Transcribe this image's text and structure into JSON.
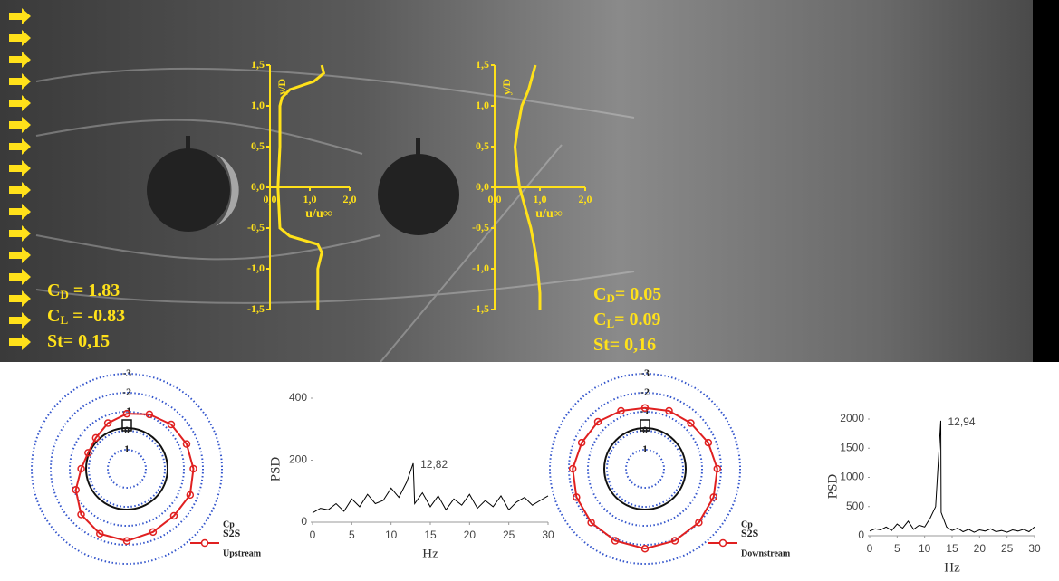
{
  "chart_data": [
    {
      "type": "line",
      "orientation": "vertical",
      "color": "#ffe11a",
      "xlabel": "u/u∞",
      "ylabel": "y/D",
      "y": [
        1.5,
        1.4,
        1.3,
        1.2,
        1.1,
        1.0,
        0.5,
        0.0,
        -0.5,
        -0.6,
        -0.7,
        -0.8,
        -1.0,
        -1.5
      ],
      "values": [
        1.3,
        1.35,
        1.1,
        0.5,
        0.3,
        0.25,
        0.25,
        0.2,
        0.25,
        0.5,
        1.2,
        1.3,
        1.2,
        1.2
      ],
      "xlim": [
        0,
        2
      ],
      "xticks": [
        {
          "value": 0,
          "label": "0,0"
        },
        {
          "value": 1,
          "label": "1,0"
        },
        {
          "value": 2,
          "label": "2,0"
        }
      ],
      "ylim": [
        -1.5,
        1.5
      ],
      "yticks": [
        {
          "value": -1.5,
          "label": "-1,5"
        },
        {
          "value": -1,
          "label": "-1,0"
        },
        {
          "value": -0.5,
          "label": "-0,5"
        },
        {
          "value": 0,
          "label": "0,0"
        },
        {
          "value": 0.5,
          "label": "0,5"
        },
        {
          "value": 1,
          "label": "1,0"
        },
        {
          "value": 1.5,
          "label": "1,5"
        }
      ],
      "annotations": [
        {
          "symbol": "C",
          "sub": "D",
          "text": " = 1.83"
        },
        {
          "symbol": "C",
          "sub": "L",
          "text": " = -0.83"
        },
        {
          "text": "St= 0,15"
        }
      ]
    },
    {
      "type": "line",
      "orientation": "vertical",
      "color": "#ffe11a",
      "xlabel": "u/u∞",
      "ylabel": "y/D",
      "y": [
        1.5,
        1.2,
        1.0,
        0.7,
        0.5,
        0.2,
        0.0,
        -0.3,
        -0.5,
        -0.8,
        -1.0,
        -1.3,
        -1.5
      ],
      "values": [
        0.9,
        0.75,
        0.6,
        0.5,
        0.45,
        0.5,
        0.55,
        0.7,
        0.8,
        0.9,
        0.95,
        1.0,
        1.0
      ],
      "xlim": [
        0,
        2
      ],
      "xticks": [
        {
          "value": 0,
          "label": "0,0"
        },
        {
          "value": 1,
          "label": "1,0"
        },
        {
          "value": 2,
          "label": "2,0"
        }
      ],
      "ylim": [
        -1.5,
        1.5
      ],
      "yticks": [
        {
          "value": -1.5,
          "label": "-1,5"
        },
        {
          "value": -1,
          "label": "-1,0"
        },
        {
          "value": -0.5,
          "label": "-0,5"
        },
        {
          "value": 0,
          "label": "0,0"
        },
        {
          "value": 0.5,
          "label": "0,5"
        },
        {
          "value": 1,
          "label": "1,0"
        },
        {
          "value": 1.5,
          "label": "1,5"
        }
      ],
      "annotations": [
        {
          "symbol": "C",
          "sub": "D",
          "text": "= 0.05"
        },
        {
          "symbol": "C",
          "sub": "L",
          "text": "= 0.09"
        },
        {
          "text": "St= 0,16"
        }
      ]
    },
    {
      "type": "polar",
      "rlim": [
        1,
        -3
      ],
      "rticks": [
        -3,
        -2,
        -1,
        0,
        1
      ],
      "legend_title": "Cp",
      "legend_subtitle": "Upstream",
      "series": [
        {
          "name": "S2S",
          "color": "#e02020",
          "theta": [
            0,
            22.5,
            45,
            67.5,
            90,
            112.5,
            135,
            157.5,
            180,
            202.5,
            225,
            247.5,
            270,
            292.5,
            315,
            337.5
          ],
          "values": [
            -0.9,
            -1.1,
            -1.3,
            -1.4,
            -1.5,
            -1.6,
            -1.5,
            -1.6,
            -1.8,
            -1.7,
            -1.4,
            -0.9,
            -0.4,
            -0.2,
            -0.3,
            -0.6
          ]
        }
      ]
    },
    {
      "type": "line",
      "color": "#000000",
      "xlabel": "Hz",
      "ylabel": "PSD",
      "x": [
        0,
        1,
        2,
        3,
        4,
        5,
        6,
        7,
        8,
        9,
        10,
        11,
        12,
        12.82,
        13,
        14,
        15,
        16,
        17,
        18,
        19,
        20,
        21,
        22,
        23,
        24,
        25,
        26,
        27,
        28,
        29,
        30
      ],
      "values": [
        30,
        45,
        40,
        60,
        35,
        75,
        50,
        90,
        60,
        70,
        110,
        80,
        130,
        190,
        60,
        95,
        50,
        85,
        40,
        75,
        55,
        90,
        45,
        70,
        50,
        85,
        40,
        65,
        80,
        55,
        70,
        85
      ],
      "xlim": [
        0,
        30
      ],
      "xticks": [
        0,
        5,
        10,
        15,
        20,
        25,
        30
      ],
      "ylim": [
        0,
        400
      ],
      "yticks": [
        0,
        200,
        400
      ],
      "annotations": [
        {
          "x": 12.82,
          "text": "12,82"
        }
      ]
    },
    {
      "type": "polar",
      "rlim": [
        1,
        -3
      ],
      "rticks": [
        -3,
        -2,
        -1,
        0,
        1
      ],
      "legend_title": "Cp",
      "legend_subtitle": "Downstream",
      "series": [
        {
          "name": "S2S",
          "color": "#e02020",
          "theta": [
            0,
            22.5,
            45,
            67.5,
            90,
            112.5,
            135,
            157.5,
            180,
            202.5,
            225,
            247.5,
            270,
            292.5,
            315,
            337.5
          ],
          "values": [
            -1.2,
            -1.3,
            -1.4,
            -1.6,
            -1.8,
            -1.9,
            -2.0,
            -2.1,
            -2.2,
            -2.1,
            -2.0,
            -1.9,
            -1.8,
            -1.6,
            -1.5,
            -1.3
          ]
        }
      ]
    },
    {
      "type": "line",
      "color": "#000000",
      "xlabel": "Hz",
      "ylabel": "PSD",
      "x": [
        0,
        1,
        2,
        3,
        4,
        5,
        6,
        7,
        8,
        9,
        10,
        11,
        12,
        12.94,
        13,
        14,
        15,
        16,
        17,
        18,
        19,
        20,
        21,
        22,
        23,
        24,
        25,
        26,
        27,
        28,
        29,
        30
      ],
      "values": [
        80,
        120,
        100,
        150,
        90,
        200,
        130,
        250,
        110,
        180,
        150,
        300,
        500,
        1970,
        400,
        150,
        90,
        130,
        70,
        110,
        60,
        100,
        80,
        120,
        70,
        90,
        60,
        100,
        80,
        110,
        70,
        150
      ],
      "xlim": [
        0,
        30
      ],
      "xticks": [
        0,
        5,
        10,
        15,
        20,
        25,
        30
      ],
      "ylim": [
        0,
        2000
      ],
      "yticks": [
        0,
        500,
        1000,
        1500,
        2000
      ],
      "annotations": [
        {
          "x": 12.94,
          "text": "12,94"
        }
      ]
    }
  ]
}
